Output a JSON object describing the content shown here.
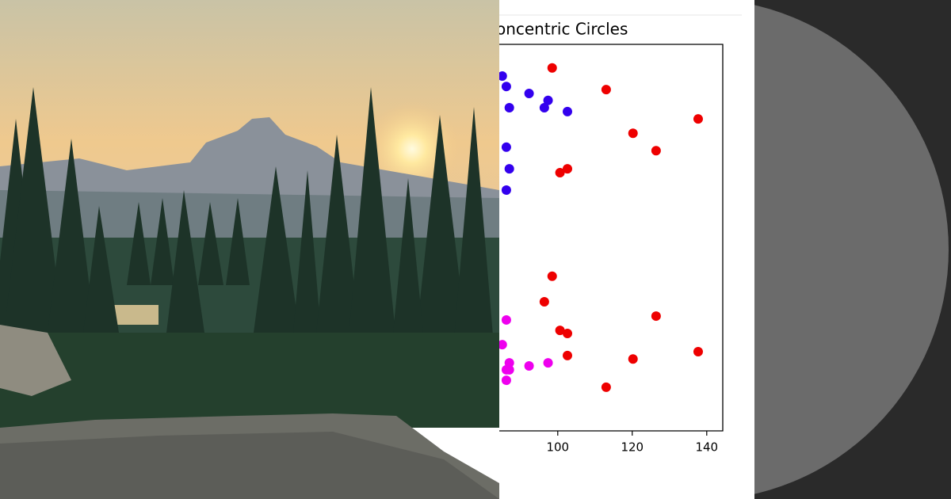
{
  "chart_data": {
    "type": "scatter",
    "title": "Concentric Circles",
    "xlim": [
      84.3,
      144.3
    ],
    "xticks": [
      100,
      120,
      140
    ],
    "ylim": [
      0,
      100
    ],
    "series": [
      {
        "color": "#ee0000",
        "x": [
          98.5,
          113.0,
          137.7,
          120.2,
          126.4,
          102.6,
          100.6,
          98.5,
          96.4,
          126.4,
          100.6,
          102.6,
          102.6,
          137.7,
          120.2,
          113.0
        ],
        "values": [
          93.9,
          88.3,
          80.7,
          77.0,
          72.5,
          67.8,
          66.8,
          40.0,
          33.4,
          29.7,
          26.0,
          25.2,
          19.5,
          20.5,
          18.6,
          11.3
        ]
      },
      {
        "color": "#3300ee",
        "x": [
          85.1,
          86.2,
          92.3,
          97.4,
          96.4,
          87.0,
          102.6,
          86.2,
          87.0,
          86.2
        ],
        "values": [
          91.8,
          89.1,
          87.3,
          85.5,
          83.6,
          83.6,
          82.6,
          73.4,
          67.8,
          62.3
        ]
      },
      {
        "color": "#ee00ee",
        "x": [
          86.2,
          85.1,
          87.0,
          86.2,
          87.0,
          92.3,
          97.4,
          86.2
        ],
        "values": [
          28.7,
          22.3,
          17.6,
          15.8,
          15.8,
          16.8,
          17.6,
          13.1
        ]
      }
    ]
  }
}
